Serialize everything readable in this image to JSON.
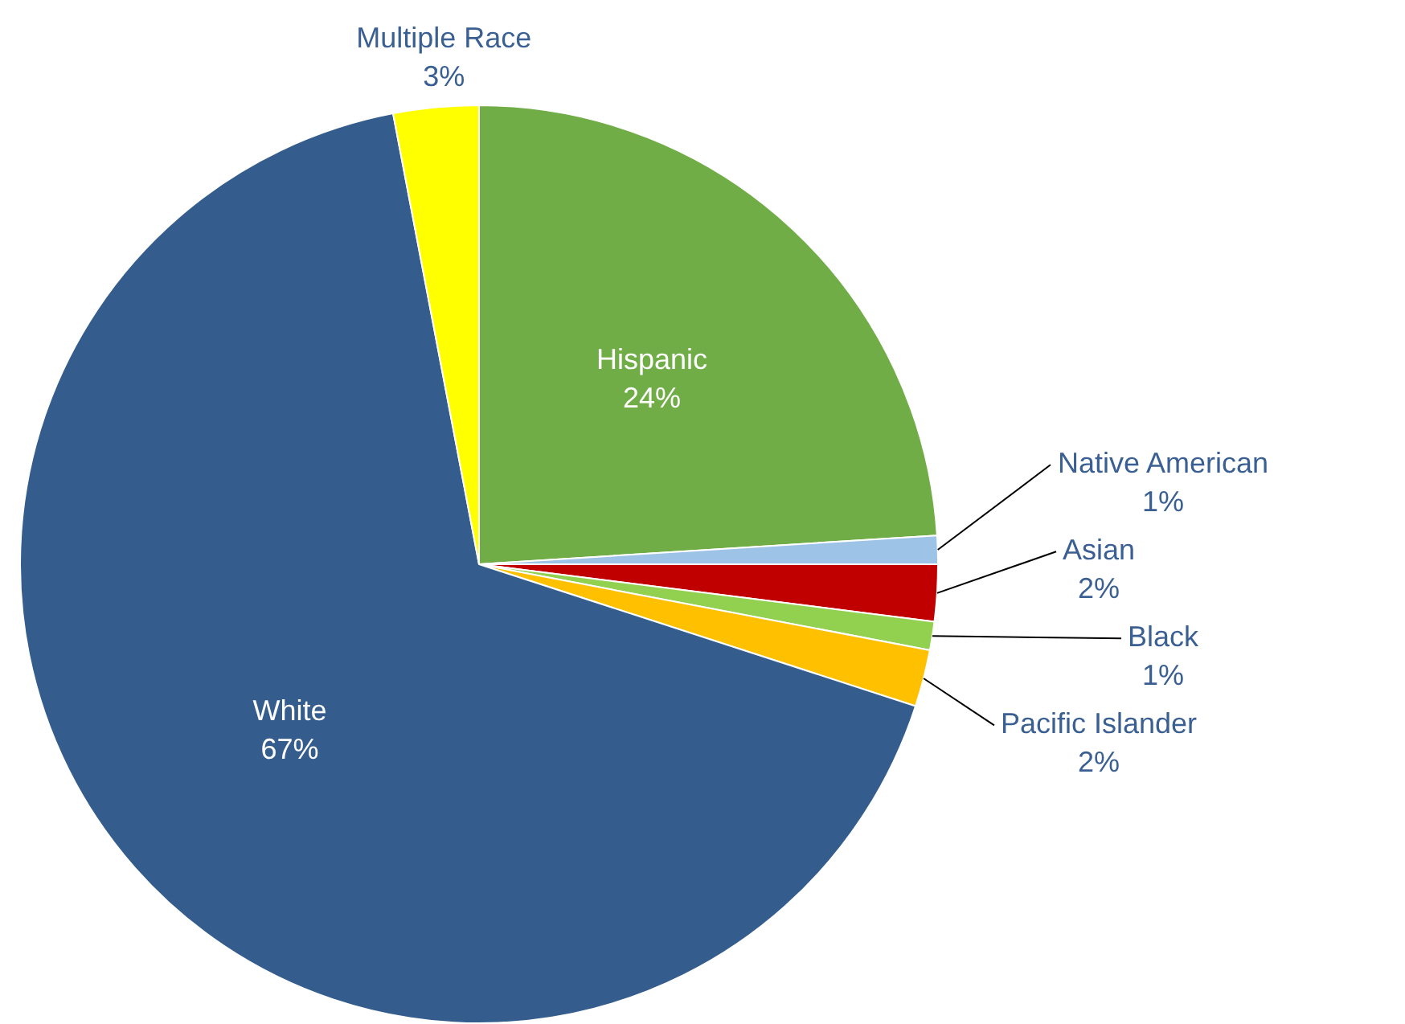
{
  "chart_data": {
    "type": "pie",
    "categories": [
      "Hispanic",
      "Native American",
      "Asian",
      "Black",
      "Pacific Islander",
      "White",
      "Multiple Race"
    ],
    "values": [
      24,
      1,
      2,
      1,
      2,
      67,
      3
    ],
    "value_labels": [
      "24%",
      "1%",
      "2%",
      "1%",
      "2%",
      "67%",
      "3%"
    ],
    "colors": [
      "#70ad47",
      "#9dc3e6",
      "#c00000",
      "#92d050",
      "#ffc000",
      "#345d8e",
      "#ffff00"
    ]
  }
}
